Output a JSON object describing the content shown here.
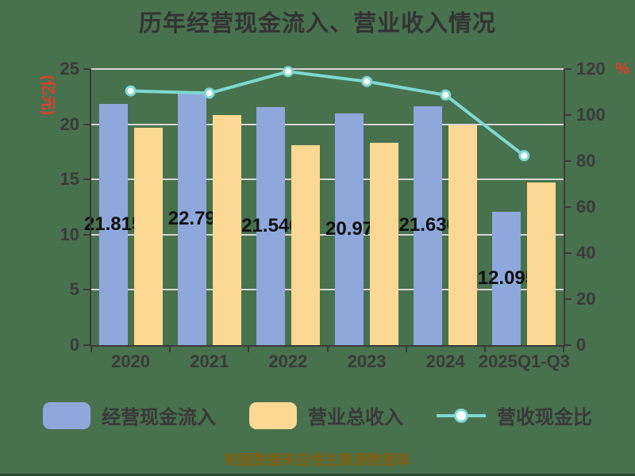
{
  "title": "历年经营现金流入、营业收入情况",
  "footer": "制图数据来自恒生聚源数据库",
  "colors": {
    "background": "#48714d",
    "bar_cash_inflow": "#8FA8DC",
    "bar_revenue": "#FBD893",
    "ratio_line": "#7FD8D1",
    "marker_fill": "#FFFFFF",
    "axis_line": "#3a3a3a",
    "axis_text": "#3a3a3a",
    "grid_line": "#d6d6d6",
    "value_label": "#101010",
    "unit_label_red": "#e23b2a",
    "title_text": "#333333",
    "legend_text": "#383838",
    "footer_text": "#7d6014"
  },
  "chart_data": {
    "type": "bar",
    "title": "历年经营现金流入、营业收入情况",
    "categories": [
      "2020",
      "2021",
      "2022",
      "2023",
      "2024",
      "2025Q1-Q3"
    ],
    "series": [
      {
        "name": "经营现金流入",
        "type": "bar",
        "axis": "left",
        "unit": "亿元",
        "values": [
          21.815,
          22.79,
          21.546,
          20.97,
          21.636,
          12.095
        ],
        "labels": [
          "21.815",
          "22.79",
          "21.546",
          "20.97",
          "21.636",
          "12.095"
        ]
      },
      {
        "name": "营业总收入",
        "type": "bar",
        "axis": "left",
        "unit": "亿元",
        "values": [
          19.7,
          20.8,
          18.1,
          18.3,
          19.9,
          14.7
        ]
      },
      {
        "name": "营收现金比",
        "type": "line",
        "axis": "right",
        "unit": "%",
        "values": [
          110.5,
          109.5,
          118.9,
          114.6,
          108.7,
          82.3
        ]
      }
    ],
    "left_axis": {
      "label": "(亿元)",
      "min": 0,
      "max": 25,
      "ticks": [
        "0",
        "5",
        "10",
        "15",
        "20",
        "25"
      ]
    },
    "right_axis": {
      "label": "%",
      "min": 0,
      "max": 120,
      "ticks": [
        "0",
        "20",
        "40",
        "60",
        "80",
        "100",
        "120"
      ]
    },
    "legend_position": "bottom",
    "grid": true
  }
}
